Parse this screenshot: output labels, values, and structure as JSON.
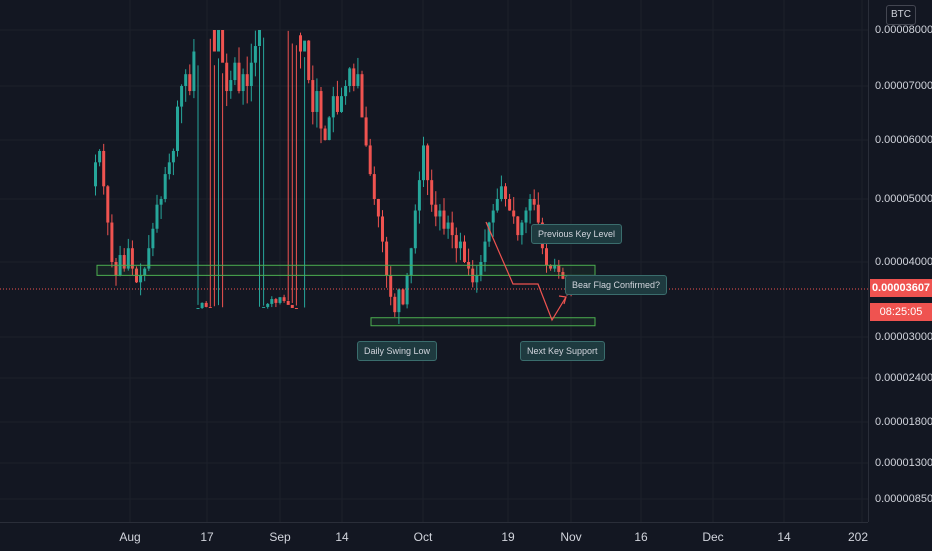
{
  "pair_currency": "BTC",
  "price_scale": {
    "labels": [
      "0.00008000",
      "0.00007000",
      "0.00006000",
      "0.00005000",
      "0.00004000",
      "0.00003000",
      "0.00002400",
      "0.00001800",
      "0.00001300",
      "0.00000850"
    ]
  },
  "last_price": "0.00003607",
  "countdown": "08:25:05",
  "time_scale": {
    "labels": [
      "Aug",
      "17",
      "Sep",
      "14",
      "Oct",
      "19",
      "Nov",
      "16",
      "Dec",
      "14",
      "202"
    ]
  },
  "annotations": {
    "previous_key_level": "Previous Key Level",
    "bear_flag": "Bear Flag Confirmed?",
    "daily_swing_low": "Daily Swing Low",
    "next_key_support": "Next Key Support"
  },
  "colors": {
    "background": "#131722",
    "up_candle": "#26a69a",
    "down_candle": "#ef5350",
    "zone_border": "#4caf50",
    "projection": "#ef5350"
  },
  "chart_data": {
    "type": "candlestick",
    "log_scale": true,
    "y_ticks": [
      8e-05,
      7e-05,
      6e-05,
      5e-05,
      4e-05,
      3e-05,
      2.4e-05,
      1.8e-05,
      1.3e-05,
      8.5e-06
    ],
    "ylim": [
      7.5e-06,
      8.85e-05
    ],
    "last_price": 3.607e-05,
    "close_path": [
      5.6,
      5.8,
      5.2,
      4.6,
      4.0,
      3.8,
      4.1,
      3.9,
      4.2,
      3.9,
      3.7,
      3.8,
      3.9,
      4.2,
      4.5,
      4.9,
      5.0,
      5.4,
      5.6,
      5.8,
      6.6,
      7.0,
      7.2,
      6.9,
      7.6,
      8.1,
      8.6,
      8.2,
      8.0,
      7.6,
      8.0,
      7.4,
      6.9,
      7.1,
      7.4,
      6.9,
      7.2,
      7.0,
      7.4,
      7.7,
      8.0,
      8.2,
      8.5,
      9.0,
      8.6,
      9.2,
      8.8,
      8.4,
      8.1,
      7.9,
      7.6,
      7.8,
      7.1,
      6.5,
      6.9,
      6.2,
      6.0,
      6.4,
      6.8,
      6.5,
      6.8,
      7.0,
      7.3,
      7.0,
      7.2,
      6.4,
      5.9,
      5.4,
      5.0,
      4.7,
      4.3,
      3.8,
      3.5,
      3.3,
      3.6,
      3.4,
      3.8,
      4.2,
      4.8,
      5.3,
      5.9,
      5.3,
      4.9,
      4.7,
      4.8,
      4.5,
      4.6,
      4.4,
      4.2,
      4.3,
      4.0,
      3.9,
      3.7,
      3.8,
      4.0,
      4.3,
      4.6,
      4.8,
      5.0,
      5.2,
      5.0,
      4.8,
      4.7,
      4.4,
      4.6,
      4.8,
      5.0,
      4.9,
      4.6,
      4.2,
      3.95,
      3.9,
      3.95,
      3.85,
      3.75,
      3.65,
      3.607
    ],
    "zones": [
      {
        "low": 3.8e-05,
        "high": 3.95e-05
      },
      {
        "low": 3.15e-05,
        "high": 3.23e-05
      }
    ]
  }
}
